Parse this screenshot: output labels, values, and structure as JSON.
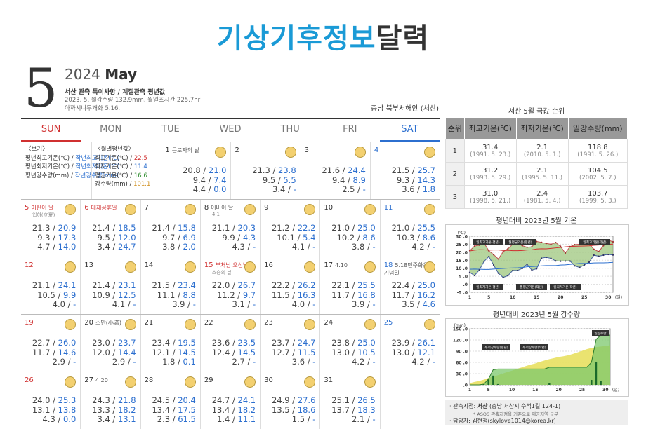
{
  "title_a": "기상기후정보",
  "title_b": "달력",
  "month_num": "5",
  "year": "2024",
  "month_name": "May",
  "note1": "서산 관측 특이사항 / 계절관측 평년값",
  "note2": "2023. 5. 월강수량 132.9mm, 월일조시간 225.7hr",
  "note3": "아까시나무개화 5.16.",
  "region": "충남 북부서해안 (서산)",
  "dow": [
    "SUN",
    "MON",
    "TUE",
    "WED",
    "THU",
    "FRI",
    "SAT"
  ],
  "legend": {
    "head": "〈보기〉",
    "l1a": "평년최고기온(℃) / ",
    "l1b": "작년최고기온(℃)",
    "l2a": "평년최저기온(℃) / ",
    "l2b": "작년최저기온(℃)",
    "l3a": "평년강수량(mm) / ",
    "l3b": "작년강수량(mm)"
  },
  "monthly": {
    "head": "〈월별평년값〉",
    "r1a": "최고기온(℃) / ",
    "r1b": "22.5",
    "r2a": "최저기온(℃) / ",
    "r2b": "11.4",
    "r3a": "평균기온(℃) / ",
    "r3b": "16.6",
    "r4a": "강수량(mm) / ",
    "r4b": "101.1"
  },
  "weeks": [
    [
      {
        "legend": true
      },
      {
        "monthly": true
      },
      {
        "day": "1",
        "label": "근로자의 날",
        "v": [
          "20.8",
          "21.0",
          "9.4",
          "7.4",
          "4.4",
          "0.0"
        ]
      },
      {
        "day": "2",
        "v": [
          "21.3",
          "23.8",
          "9.5",
          "5.5",
          "3.4",
          "-"
        ]
      },
      {
        "day": "3",
        "v": [
          "21.6",
          "24.4",
          "9.4",
          "8.9",
          "2.5",
          "-"
        ]
      },
      {
        "day": "4",
        "sat": true,
        "v": [
          "21.5",
          "25.7",
          "9.3",
          "14.3",
          "3.6",
          "1.8"
        ]
      }
    ],
    [
      {
        "day": "5",
        "sun": true,
        "label": "어린이 날",
        "hol": true,
        "sub": "입하(立夏)",
        "v": [
          "21.3",
          "20.9",
          "9.3",
          "17.3",
          "4.7",
          "14.0"
        ]
      },
      {
        "day": "6",
        "hol": true,
        "label": "대체공휴일",
        "hlabel": true,
        "v": [
          "21.4",
          "18.5",
          "9.5",
          "12.0",
          "3.4",
          "24.7"
        ]
      },
      {
        "day": "7",
        "v": [
          "21.4",
          "15.8",
          "9.7",
          "6.9",
          "3.8",
          "2.0"
        ]
      },
      {
        "day": "8",
        "label": "어버이 날",
        "sub": "4.1",
        "v": [
          "21.1",
          "20.3",
          "9.9",
          "4.3",
          "4.3",
          "-"
        ]
      },
      {
        "day": "9",
        "v": [
          "21.2",
          "22.2",
          "10.1",
          "5.4",
          "4.1",
          "-"
        ]
      },
      {
        "day": "10",
        "v": [
          "21.0",
          "25.0",
          "10.2",
          "8.6",
          "3.8",
          "-"
        ]
      },
      {
        "day": "11",
        "sat": true,
        "v": [
          "21.0",
          "25.5",
          "10.3",
          "8.6",
          "4.2",
          "-"
        ]
      }
    ],
    [
      {
        "day": "12",
        "sun": true,
        "v": [
          "21.1",
          "24.1",
          "10.5",
          "9.9",
          "4.0",
          "-"
        ]
      },
      {
        "day": "13",
        "v": [
          "21.4",
          "23.1",
          "10.9",
          "12.5",
          "4.1",
          "-"
        ]
      },
      {
        "day": "14",
        "v": [
          "21.5",
          "23.4",
          "11.1",
          "8.8",
          "3.9",
          "-"
        ]
      },
      {
        "day": "15",
        "hol": true,
        "label": "부처님 오신날",
        "hlabel": true,
        "sub": "스승의 날",
        "v": [
          "22.0",
          "26.7",
          "11.2",
          "9.7",
          "3.1",
          "-"
        ]
      },
      {
        "day": "16",
        "v": [
          "22.2",
          "26.2",
          "11.5",
          "16.3",
          "4.0",
          "-"
        ]
      },
      {
        "day": "17",
        "label": "4.10",
        "v": [
          "22.1",
          "25.5",
          "11.7",
          "16.8",
          "3.9",
          "-"
        ]
      },
      {
        "day": "18",
        "sat": true,
        "label": "5.18민주화운동 기념일",
        "v": [
          "22.4",
          "25.0",
          "11.7",
          "16.2",
          "3.5",
          "4.6"
        ]
      }
    ],
    [
      {
        "day": "19",
        "sun": true,
        "v": [
          "22.7",
          "26.0",
          "11.7",
          "14.6",
          "2.9",
          "-"
        ]
      },
      {
        "day": "20",
        "label": "소만(小滿)",
        "v": [
          "23.0",
          "23.7",
          "12.0",
          "14.4",
          "2.9",
          "-"
        ]
      },
      {
        "day": "21",
        "v": [
          "23.4",
          "19.5",
          "12.1",
          "14.5",
          "1.8",
          "0.1"
        ]
      },
      {
        "day": "22",
        "v": [
          "23.6",
          "23.5",
          "12.4",
          "14.5",
          "2.7",
          "-"
        ]
      },
      {
        "day": "23",
        "v": [
          "23.7",
          "24.7",
          "12.7",
          "11.5",
          "3.6",
          "-"
        ]
      },
      {
        "day": "24",
        "v": [
          "23.8",
          "25.0",
          "13.0",
          "10.5",
          "4.2",
          "-"
        ]
      },
      {
        "day": "25",
        "sat": true,
        "v": [
          "23.9",
          "26.1",
          "13.0",
          "12.1",
          "4.2",
          "-"
        ]
      }
    ],
    [
      {
        "day": "26",
        "sun": true,
        "v": [
          "24.0",
          "25.3",
          "13.1",
          "13.8",
          "4.3",
          "0.0"
        ]
      },
      {
        "day": "27",
        "label": "4.20",
        "v": [
          "24.3",
          "21.8",
          "13.3",
          "18.2",
          "3.4",
          "13.1"
        ]
      },
      {
        "day": "28",
        "v": [
          "24.5",
          "20.4",
          "13.4",
          "17.5",
          "2.3",
          "61.5"
        ]
      },
      {
        "day": "29",
        "v": [
          "24.7",
          "24.1",
          "13.4",
          "18.2",
          "1.4",
          "11.1"
        ]
      },
      {
        "day": "30",
        "v": [
          "24.9",
          "27.6",
          "13.5",
          "18.6",
          "1.5",
          "-"
        ]
      },
      {
        "day": "31",
        "v": [
          "25.1",
          "26.5",
          "13.7",
          "18.3",
          "2.1",
          "-"
        ]
      },
      {
        "empty": true
      }
    ]
  ],
  "rank": {
    "title": "서산 5월 극값 순위",
    "headers": [
      "순위",
      "최고기온(℃)",
      "최저기온(℃)",
      "일강수량(mm)"
    ],
    "rows": [
      [
        "1",
        "31.4",
        "(1991. 5. 23.)",
        "2.1",
        "(2010. 5. 1.)",
        "118.8",
        "(1991. 5. 26.)"
      ],
      [
        "2",
        "31.2",
        "(1993. 5. 29.)",
        "2.1",
        "(1995. 5. 11.)",
        "104.5",
        "(2002. 5. 7.)"
      ],
      [
        "3",
        "31.0",
        "(1998. 5. 21.)",
        "2.4",
        "(1981. 5. 4.)",
        "103.7",
        "(1999. 5. 3.)"
      ]
    ]
  },
  "chart_data": [
    {
      "type": "line",
      "title": "평년대비 2023년 5월 기온",
      "ylabel": "(℃)",
      "xlabel": "(일)",
      "ylim": [
        -5,
        30
      ],
      "yticks": [
        "30 .0",
        "25 .0",
        "20 .0",
        "15 .0",
        "10 .0",
        "5 .0",
        ".0",
        "-5 .0"
      ],
      "xticks": [
        "1",
        "5",
        "10",
        "15",
        "20",
        "25",
        "30"
      ],
      "legend": [
        "일최고기온(평년)",
        "월평균기온(평년)",
        "일최고기온(작년)",
        "일최저기온(평년)",
        "월평균기온(작년)",
        "일최저기온(작년)"
      ],
      "series": [
        {
          "name": "일최고기온(작년)",
          "values": [
            21.0,
            23.8,
            24.4,
            25.7,
            20.9,
            18.5,
            15.8,
            20.3,
            22.2,
            25.0,
            25.5,
            24.1,
            23.1,
            23.4,
            26.7,
            26.2,
            25.5,
            25.0,
            26.0,
            23.7,
            19.5,
            23.5,
            24.7,
            25.0,
            26.1,
            25.3,
            21.8,
            20.4,
            24.1,
            27.6,
            26.5
          ]
        },
        {
          "name": "일최고기온(평년)",
          "values": [
            20.8,
            21.3,
            21.6,
            21.5,
            21.3,
            21.4,
            21.4,
            21.1,
            21.2,
            21.0,
            21.0,
            21.1,
            21.4,
            21.5,
            22.0,
            22.2,
            22.1,
            22.4,
            22.7,
            23.0,
            23.4,
            23.6,
            23.7,
            23.8,
            23.9,
            24.0,
            24.3,
            24.5,
            24.7,
            24.9,
            25.1
          ]
        },
        {
          "name": "일최저기온(작년)",
          "values": [
            7.4,
            5.5,
            8.9,
            14.3,
            17.3,
            12.0,
            6.9,
            4.3,
            5.4,
            8.6,
            8.6,
            9.9,
            12.5,
            8.8,
            9.7,
            16.3,
            16.8,
            16.2,
            14.6,
            14.4,
            14.5,
            14.5,
            11.5,
            10.5,
            12.1,
            13.8,
            18.2,
            17.5,
            18.2,
            18.6,
            18.3
          ]
        },
        {
          "name": "일최저기온(평년)",
          "values": [
            9.4,
            9.5,
            9.4,
            9.3,
            9.3,
            9.5,
            9.7,
            9.9,
            10.1,
            10.2,
            10.3,
            10.5,
            10.9,
            11.1,
            11.2,
            11.5,
            11.7,
            11.7,
            11.7,
            12.0,
            12.1,
            12.4,
            12.7,
            13.0,
            13.0,
            13.1,
            13.3,
            13.4,
            13.4,
            13.5,
            13.7
          ]
        }
      ]
    },
    {
      "type": "area",
      "title": "평년대비 2023년 5월 강수량",
      "ylabel": "(mm)",
      "xlabel": "(일)",
      "ylim": [
        0,
        150
      ],
      "yticks": [
        "150 .0",
        "120 .0",
        "90 .0",
        "60 .0",
        "30 .0",
        ".0"
      ],
      "xticks": [
        "1",
        "5",
        "10",
        "15",
        "20",
        "25",
        "30"
      ],
      "legend": [
        "누적강수량(평년)",
        "누적강수량(작년)",
        "일강수량"
      ],
      "series": [
        {
          "name": "누적강수량(작년)",
          "values": [
            0,
            0,
            0,
            1.8,
            15.8,
            40.5,
            42.5,
            42.5,
            42.5,
            42.5,
            42.5,
            42.5,
            42.5,
            42.5,
            42.5,
            42.5,
            42.5,
            47.1,
            47.1,
            47.1,
            47.2,
            47.2,
            47.2,
            47.2,
            47.2,
            47.2,
            60.3,
            121.8,
            132.9,
            132.9,
            132.9
          ]
        },
        {
          "name": "누적강수량(평년)",
          "values": [
            4.4,
            7.8,
            10.3,
            13.9,
            18.6,
            22.0,
            25.8,
            30.1,
            34.2,
            38.0,
            42.2,
            46.2,
            50.3,
            54.2,
            57.3,
            61.3,
            65.2,
            68.7,
            71.6,
            74.5,
            76.3,
            79.0,
            82.6,
            86.8,
            91.0,
            95.3,
            98.7,
            101.0,
            102.4,
            103.9,
            106.0
          ]
        },
        {
          "name": "일강수량",
          "values": [
            0,
            0,
            0,
            1.8,
            14.0,
            24.7,
            2.0,
            0,
            0,
            0,
            0,
            0,
            0,
            0,
            0,
            0,
            0,
            4.6,
            0,
            0,
            0.1,
            0,
            0,
            0,
            0,
            0,
            13.1,
            61.5,
            11.1,
            0,
            0
          ]
        }
      ]
    }
  ],
  "footer": {
    "l1a": "· 관측지점: ",
    "l1b": "서산",
    "l1c": " (충남 서산시 수석1길 124-1)",
    "l2": "* ASOS 관측지점을 기준으로 제공지역 구분",
    "l3a": "· 담당자: ",
    "l3b": "김현정(skylove1014@korea.kr)"
  }
}
